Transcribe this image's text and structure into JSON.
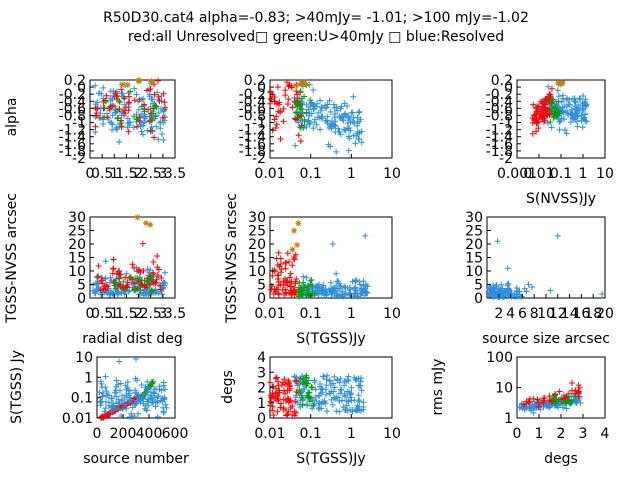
{
  "figure": {
    "title_line1": "R50D30.cat4 alpha=-0.83; >40mJy= -1.01; >100 mJy=-1.02",
    "title_line2": "red:all Unresolved□ green:U>40mJy □ blue:Resolved"
  },
  "colors": {
    "red": "#ff0000",
    "green": "#00a000",
    "blue": "#2e8fdc",
    "orange": "#c08000"
  },
  "chart_data": [
    {
      "id": "p1",
      "type": "scatter",
      "xscale": "linear",
      "xlim": [
        0,
        3.5
      ],
      "yscale": "linear",
      "ylim": [
        -2,
        0.2
      ],
      "xticks": [
        "0",
        "0.5",
        "1",
        "1.5",
        "2",
        "2.5",
        "3",
        "3.5"
      ],
      "yticks": [
        "-2",
        "-1.8",
        "-1.6",
        "-1.4",
        "-1.2",
        "-1",
        "-0.8",
        "-0.6",
        "-0.4",
        "-0.2",
        "0",
        "0.2"
      ],
      "xlabel": "",
      "ylabel": "alpha"
    },
    {
      "id": "p2",
      "type": "scatter",
      "xscale": "log",
      "xlim": [
        0.01,
        10
      ],
      "yscale": "linear",
      "ylim": [
        -2,
        0.2
      ],
      "xticks": [
        "0.01",
        "0.1",
        "1",
        "10"
      ],
      "yticks": [
        "-2",
        "-1.8",
        "-1.6",
        "-1.4",
        "-1.2",
        "-1",
        "-0.8",
        "-0.6",
        "-0.4",
        "-0.2",
        "0",
        "0.2"
      ],
      "xlabel": "",
      "ylabel": ""
    },
    {
      "id": "p3",
      "type": "scatter",
      "xscale": "log",
      "xlim": [
        0.001,
        10
      ],
      "yscale": "linear",
      "ylim": [
        -2,
        0.2
      ],
      "xticks": [
        "0.001",
        "0.01",
        "0.1",
        "1",
        "10"
      ],
      "yticks": [
        "-2",
        "-1.8",
        "-1.6",
        "-1.4",
        "-1.2",
        "-1",
        "-0.8",
        "-0.6",
        "-0.4",
        "-0.2",
        "0",
        "0.2"
      ],
      "xlabel": "S(NVSS)Jy",
      "ylabel": ""
    },
    {
      "id": "p4",
      "type": "scatter",
      "xscale": "linear",
      "xlim": [
        0,
        3.5
      ],
      "yscale": "linear",
      "ylim": [
        0,
        30
      ],
      "xticks": [
        "0",
        "0.5",
        "1",
        "1.5",
        "2",
        "2.5",
        "3",
        "3.5"
      ],
      "yticks": [
        "0",
        "5",
        "10",
        "15",
        "20",
        "25",
        "30"
      ],
      "xlabel": "radial dist deg",
      "ylabel": "TGSS-NVSS arcsec"
    },
    {
      "id": "p5",
      "type": "scatter",
      "xscale": "log",
      "xlim": [
        0.01,
        10
      ],
      "yscale": "linear",
      "ylim": [
        0,
        30
      ],
      "xticks": [
        "0.01",
        "0.1",
        "1",
        "10"
      ],
      "yticks": [
        "0",
        "5",
        "10",
        "15",
        "20",
        "25",
        "30"
      ],
      "xlabel": "S(TGSS)Jy",
      "ylabel": "TGSS-NVSS arcsec"
    },
    {
      "id": "p6",
      "type": "scatter",
      "xscale": "linear",
      "xlim": [
        0,
        20
      ],
      "yscale": "linear",
      "ylim": [
        0,
        30
      ],
      "xticks": [
        "2",
        "4",
        "6",
        "8",
        "10",
        "12",
        "14",
        "16",
        "18",
        "20"
      ],
      "yticks": [
        "0",
        "5",
        "10",
        "15",
        "20",
        "25",
        "30"
      ],
      "xlabel": "source size arcsec",
      "ylabel": ""
    },
    {
      "id": "p7",
      "type": "scatter",
      "xscale": "linear",
      "xlim": [
        0,
        600
      ],
      "yscale": "log",
      "ylim": [
        0.01,
        10
      ],
      "xticks": [
        "0",
        "200",
        "400",
        "600"
      ],
      "yticks": [
        "0.01",
        "0.1",
        "1",
        "10"
      ],
      "xlabel": "source number",
      "ylabel": "S(TGSS) Jy"
    },
    {
      "id": "p8",
      "type": "scatter",
      "xscale": "log",
      "xlim": [
        0.01,
        10
      ],
      "yscale": "linear",
      "ylim": [
        0,
        4
      ],
      "xticks": [
        "0.01",
        "0.1",
        "1",
        "10"
      ],
      "yticks": [
        "0",
        "1",
        "2",
        "3",
        "4"
      ],
      "xlabel": "S(TGSS)Jy",
      "ylabel": "degs"
    },
    {
      "id": "p9",
      "type": "scatter",
      "xscale": "linear",
      "xlim": [
        0,
        4
      ],
      "yscale": "log",
      "ylim": [
        1,
        100
      ],
      "xticks": [
        "0",
        "1",
        "2",
        "3",
        "4"
      ],
      "yticks": [
        "1",
        "10",
        "100"
      ],
      "xlabel": "degs",
      "ylabel": "rms mJy"
    }
  ]
}
